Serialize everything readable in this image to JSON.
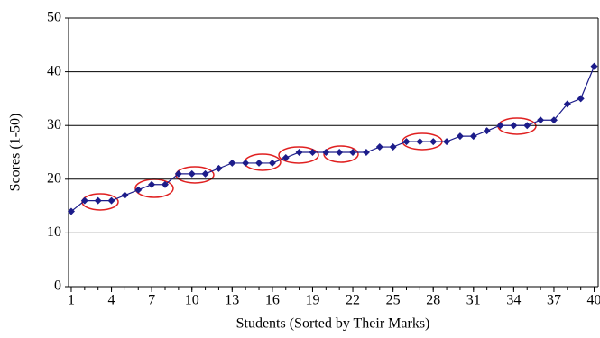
{
  "chart_data": {
    "type": "line",
    "x_label": "Students (Sorted by Their Marks)",
    "y_label": "Scores (1-50)",
    "x": [
      1,
      2,
      3,
      4,
      5,
      6,
      7,
      8,
      9,
      10,
      11,
      12,
      13,
      14,
      15,
      16,
      17,
      18,
      19,
      20,
      21,
      22,
      23,
      24,
      25,
      26,
      27,
      28,
      29,
      30,
      31,
      32,
      33,
      34,
      35,
      36,
      37,
      38,
      39,
      40
    ],
    "series": [
      {
        "color": "#1c1c8a",
        "values": [
          14,
          16,
          16,
          16,
          17,
          18,
          19,
          19,
          21,
          21,
          21,
          22,
          23,
          23,
          23,
          23,
          24,
          25,
          25,
          25,
          25,
          25,
          25,
          26,
          26,
          27,
          27,
          27,
          27,
          28,
          28,
          29,
          30,
          30,
          30,
          31,
          31,
          34,
          35,
          41
        ]
      }
    ],
    "xlim": [
      0.8,
      40.3
    ],
    "xticks": [
      1,
      4,
      7,
      10,
      13,
      16,
      19,
      22,
      25,
      28,
      31,
      34,
      37,
      40
    ],
    "ylim": [
      0,
      50
    ],
    "yticks": [
      0,
      10,
      20,
      30,
      40,
      50
    ],
    "grid": true
  }
}
